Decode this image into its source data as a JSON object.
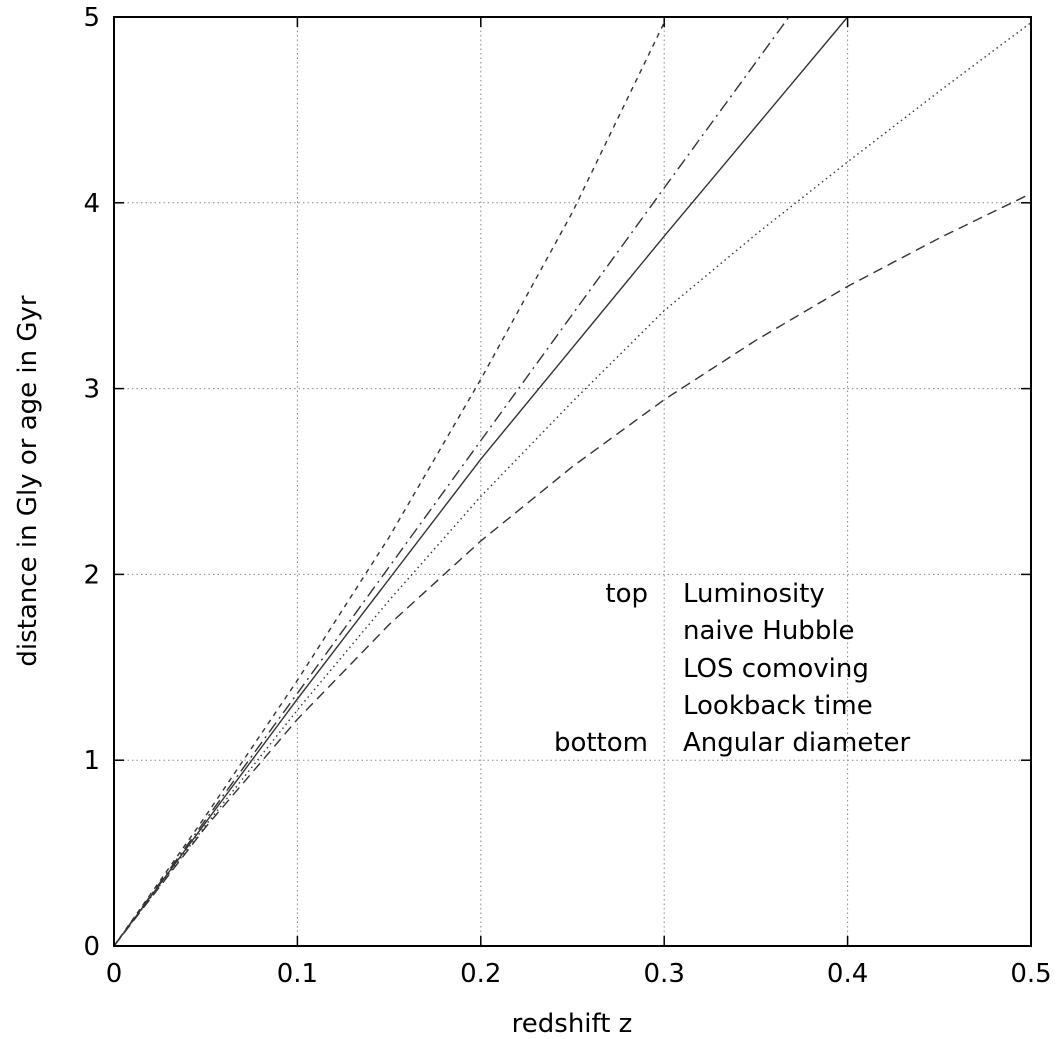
{
  "chart_data": {
    "type": "line",
    "title": "",
    "xlabel": "redshift z",
    "ylabel": "distance in Gly or age in Gyr",
    "xlim": [
      0,
      0.5
    ],
    "ylim": [
      0,
      5
    ],
    "grid": true,
    "x_ticks": [
      "0",
      "0.1",
      "0.2",
      "0.3",
      "0.4",
      "0.5"
    ],
    "y_ticks": [
      "0",
      "1",
      "2",
      "3",
      "4",
      "5"
    ],
    "legend": {
      "placement": "lower-right-inside",
      "top_label": "top",
      "bottom_label": "bottom",
      "entries": [
        "Luminosity",
        "naive Hubble",
        "LOS comoving",
        "Lookback time",
        "Angular diameter"
      ]
    },
    "series": [
      {
        "name": "Luminosity",
        "dash": "dashed-short",
        "x": [
          0,
          0.05,
          0.1,
          0.15,
          0.2,
          0.25,
          0.3
        ],
        "y": [
          0,
          0.7,
          1.43,
          2.2,
          3.05,
          3.95,
          4.97
        ]
      },
      {
        "name": "naive Hubble",
        "dash": "dash-dot",
        "x": [
          0,
          0.1,
          0.2,
          0.3,
          0.368
        ],
        "y": [
          0,
          1.36,
          2.72,
          4.08,
          5.0
        ]
      },
      {
        "name": "LOS comoving",
        "dash": "solid",
        "x": [
          0,
          0.1,
          0.2,
          0.3,
          0.4
        ],
        "y": [
          0,
          1.33,
          2.62,
          3.82,
          5.0
        ]
      },
      {
        "name": "Lookback time",
        "dash": "dotted",
        "x": [
          0,
          0.05,
          0.1,
          0.15,
          0.2,
          0.25,
          0.3,
          0.35,
          0.4,
          0.45,
          0.5
        ],
        "y": [
          0,
          0.65,
          1.27,
          1.86,
          2.42,
          2.93,
          3.42,
          3.83,
          4.22,
          4.6,
          4.97
        ]
      },
      {
        "name": "Angular diameter",
        "dash": "dashed-long",
        "x": [
          0,
          0.05,
          0.1,
          0.15,
          0.2,
          0.25,
          0.3,
          0.35,
          0.4,
          0.45,
          0.5
        ],
        "y": [
          0,
          0.64,
          1.22,
          1.73,
          2.18,
          2.58,
          2.94,
          3.26,
          3.55,
          3.81,
          4.05
        ]
      }
    ]
  }
}
